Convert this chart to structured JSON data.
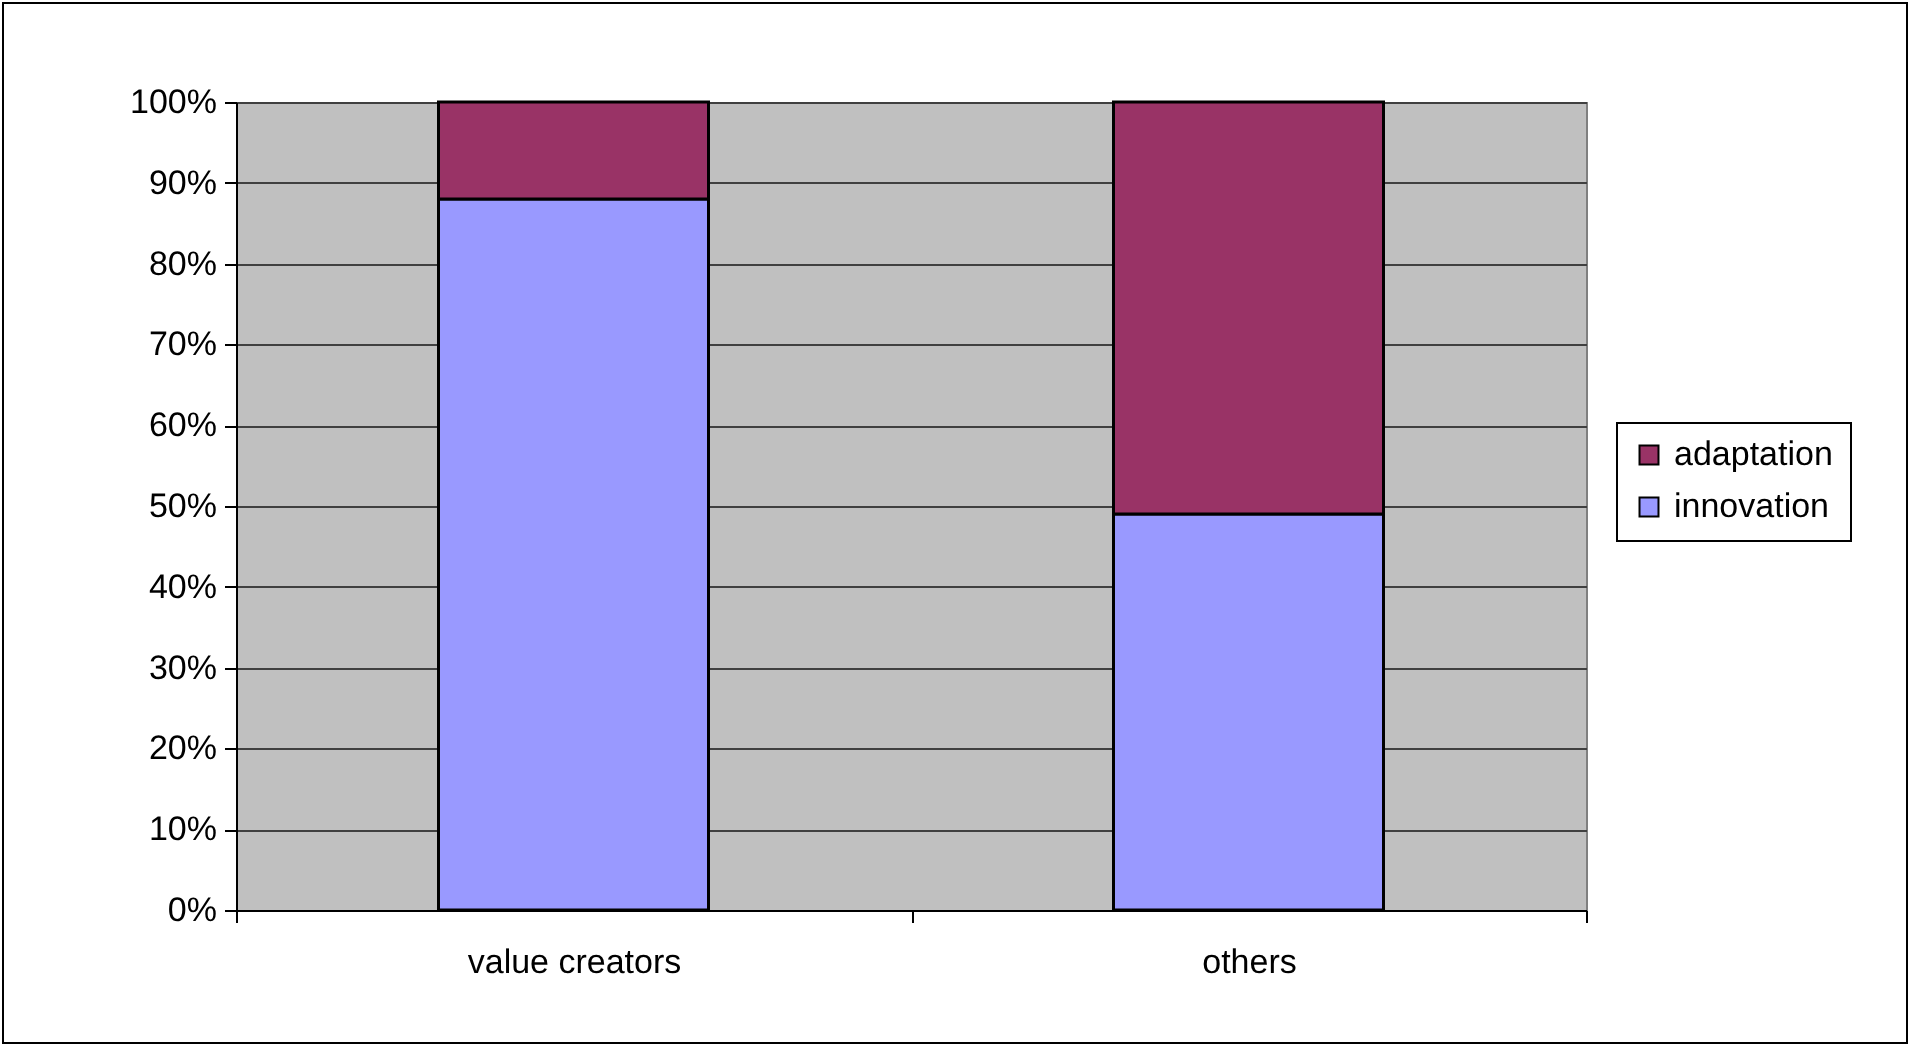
{
  "chart_data": {
    "type": "bar",
    "stacked": true,
    "categories": [
      "value creators",
      "others"
    ],
    "series": [
      {
        "name": "innovation",
        "color": "#9999ff",
        "values": [
          88,
          49
        ]
      },
      {
        "name": "adaptation",
        "color": "#993366",
        "values": [
          12,
          51
        ]
      }
    ],
    "ylim": [
      0,
      100
    ],
    "yticks": [
      {
        "value": 0,
        "label": "0%"
      },
      {
        "value": 10,
        "label": "10%"
      },
      {
        "value": 20,
        "label": "20%"
      },
      {
        "value": 30,
        "label": "30%"
      },
      {
        "value": 40,
        "label": "40%"
      },
      {
        "value": 50,
        "label": "50%"
      },
      {
        "value": 60,
        "label": "60%"
      },
      {
        "value": 70,
        "label": "70%"
      },
      {
        "value": 80,
        "label": "80%"
      },
      {
        "value": 90,
        "label": "90%"
      },
      {
        "value": 100,
        "label": "100%"
      }
    ],
    "grid": "y",
    "legend": "right"
  }
}
